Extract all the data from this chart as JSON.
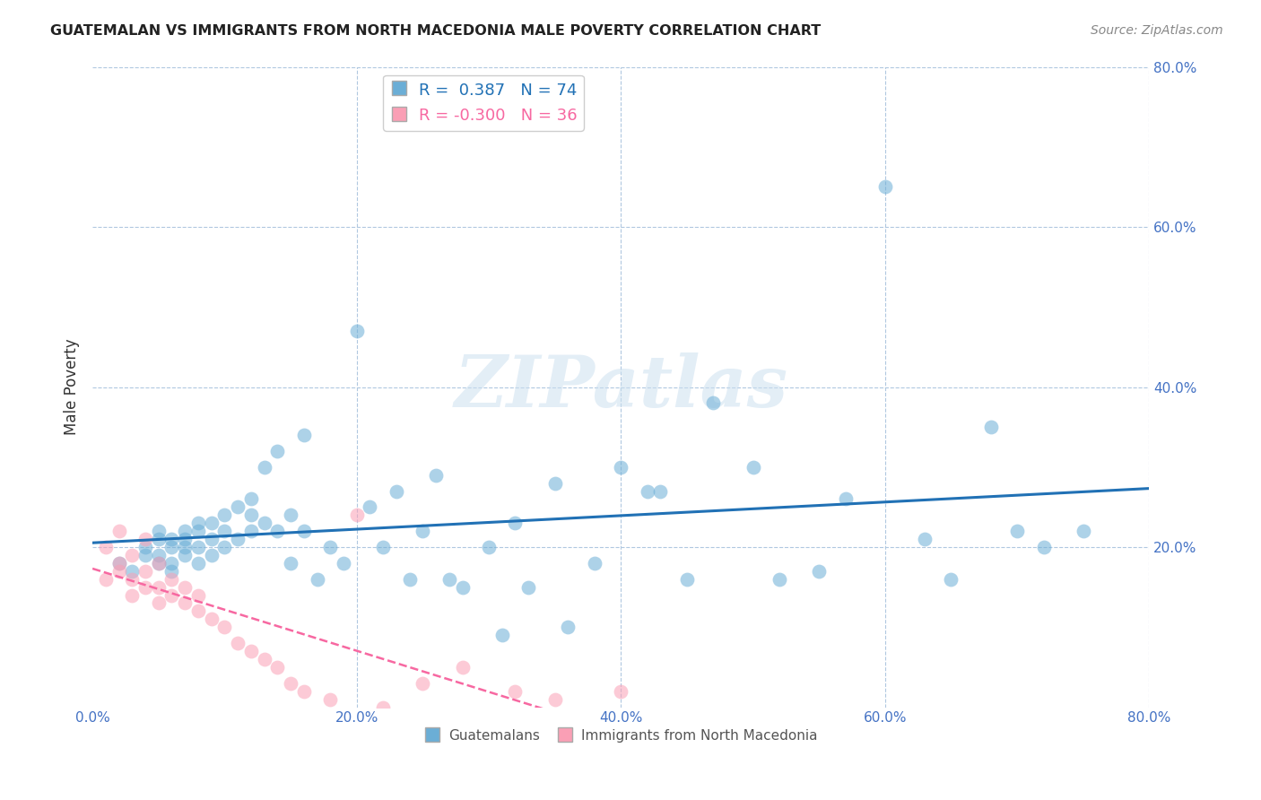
{
  "title": "GUATEMALAN VS IMMIGRANTS FROM NORTH MACEDONIA MALE POVERTY CORRELATION CHART",
  "source": "Source: ZipAtlas.com",
  "ylabel": "Male Poverty",
  "xlim": [
    0.0,
    0.8
  ],
  "ylim": [
    0.0,
    0.8
  ],
  "xtick_labels": [
    "0.0%",
    "20.0%",
    "40.0%",
    "60.0%",
    "80.0%"
  ],
  "xtick_vals": [
    0.0,
    0.2,
    0.4,
    0.6,
    0.8
  ],
  "ytick_labels": [
    "20.0%",
    "40.0%",
    "60.0%",
    "80.0%"
  ],
  "ytick_vals": [
    0.2,
    0.4,
    0.6,
    0.8
  ],
  "blue_R": 0.387,
  "blue_N": 74,
  "pink_R": -0.3,
  "pink_N": 36,
  "blue_color": "#6baed6",
  "pink_color": "#fa9fb5",
  "blue_line_color": "#2171b5",
  "pink_line_color": "#f768a1",
  "watermark": "ZIPatlas",
  "blue_scatter_x": [
    0.02,
    0.03,
    0.04,
    0.04,
    0.05,
    0.05,
    0.05,
    0.05,
    0.06,
    0.06,
    0.06,
    0.06,
    0.07,
    0.07,
    0.07,
    0.07,
    0.08,
    0.08,
    0.08,
    0.08,
    0.09,
    0.09,
    0.09,
    0.1,
    0.1,
    0.1,
    0.11,
    0.11,
    0.12,
    0.12,
    0.12,
    0.13,
    0.13,
    0.14,
    0.14,
    0.15,
    0.15,
    0.16,
    0.16,
    0.17,
    0.18,
    0.19,
    0.2,
    0.21,
    0.22,
    0.23,
    0.24,
    0.25,
    0.26,
    0.27,
    0.28,
    0.3,
    0.31,
    0.32,
    0.33,
    0.35,
    0.36,
    0.38,
    0.4,
    0.42,
    0.43,
    0.45,
    0.47,
    0.5,
    0.52,
    0.55,
    0.57,
    0.6,
    0.63,
    0.65,
    0.68,
    0.7,
    0.72,
    0.75
  ],
  "blue_scatter_y": [
    0.18,
    0.17,
    0.19,
    0.2,
    0.18,
    0.19,
    0.21,
    0.22,
    0.17,
    0.18,
    0.2,
    0.21,
    0.19,
    0.2,
    0.21,
    0.22,
    0.18,
    0.2,
    0.22,
    0.23,
    0.19,
    0.21,
    0.23,
    0.2,
    0.22,
    0.24,
    0.21,
    0.25,
    0.22,
    0.24,
    0.26,
    0.23,
    0.3,
    0.22,
    0.32,
    0.18,
    0.24,
    0.22,
    0.34,
    0.16,
    0.2,
    0.18,
    0.47,
    0.25,
    0.2,
    0.27,
    0.16,
    0.22,
    0.29,
    0.16,
    0.15,
    0.2,
    0.09,
    0.23,
    0.15,
    0.28,
    0.1,
    0.18,
    0.3,
    0.27,
    0.27,
    0.16,
    0.38,
    0.3,
    0.16,
    0.17,
    0.26,
    0.65,
    0.21,
    0.16,
    0.35,
    0.22,
    0.2,
    0.22
  ],
  "pink_scatter_x": [
    0.01,
    0.01,
    0.02,
    0.02,
    0.02,
    0.03,
    0.03,
    0.03,
    0.04,
    0.04,
    0.04,
    0.05,
    0.05,
    0.05,
    0.06,
    0.06,
    0.07,
    0.07,
    0.08,
    0.08,
    0.09,
    0.1,
    0.11,
    0.12,
    0.13,
    0.14,
    0.15,
    0.16,
    0.18,
    0.2,
    0.22,
    0.25,
    0.28,
    0.32,
    0.35,
    0.4
  ],
  "pink_scatter_y": [
    0.16,
    0.2,
    0.17,
    0.18,
    0.22,
    0.14,
    0.16,
    0.19,
    0.15,
    0.17,
    0.21,
    0.13,
    0.15,
    0.18,
    0.14,
    0.16,
    0.13,
    0.15,
    0.12,
    0.14,
    0.11,
    0.1,
    0.08,
    0.07,
    0.06,
    0.05,
    0.03,
    0.02,
    0.01,
    0.24,
    0.0,
    0.03,
    0.05,
    0.02,
    0.01,
    0.02
  ]
}
